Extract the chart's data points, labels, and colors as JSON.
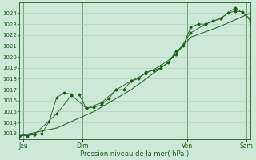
{
  "background_color": "#cce8d8",
  "plot_bg_color": "#cce8d8",
  "grid_color": "#aaccb8",
  "line_color": "#1a5c1a",
  "ylabel": "Pression niveau de la mer( hPa )",
  "ylim": [
    1012.5,
    1025.0
  ],
  "yticks": [
    1013,
    1014,
    1015,
    1016,
    1017,
    1018,
    1019,
    1020,
    1021,
    1022,
    1023,
    1024
  ],
  "xtick_labels": [
    "Jeu",
    "Dim",
    "Ven",
    "Sam"
  ],
  "xtick_positions": [
    0.5,
    8.5,
    22.5,
    30.5
  ],
  "series1": [
    [
      0,
      1012.8
    ],
    [
      1,
      1012.8
    ],
    [
      2,
      1012.9
    ],
    [
      3,
      1013.0
    ],
    [
      4,
      1014.1
    ],
    [
      5,
      1016.3
    ],
    [
      6,
      1016.7
    ],
    [
      7,
      1016.6
    ],
    [
      8,
      1016.6
    ],
    [
      9,
      1015.3
    ],
    [
      10,
      1015.4
    ],
    [
      11,
      1015.6
    ],
    [
      12,
      1016.2
    ],
    [
      13,
      1017.0
    ],
    [
      14,
      1017.0
    ],
    [
      15,
      1017.8
    ],
    [
      16,
      1018.0
    ],
    [
      17,
      1018.6
    ],
    [
      18,
      1018.8
    ],
    [
      19,
      1019.0
    ],
    [
      20,
      1019.5
    ],
    [
      21,
      1020.5
    ],
    [
      22,
      1021.0
    ],
    [
      23,
      1022.7
    ],
    [
      24,
      1023.0
    ],
    [
      25,
      1023.0
    ],
    [
      26,
      1023.3
    ],
    [
      27,
      1023.5
    ],
    [
      28,
      1024.0
    ],
    [
      29,
      1024.2
    ],
    [
      30,
      1024.1
    ],
    [
      31,
      1023.3
    ]
  ],
  "series2": [
    [
      0,
      1012.8
    ],
    [
      2,
      1012.9
    ],
    [
      5,
      1014.8
    ],
    [
      7,
      1016.5
    ],
    [
      9,
      1015.3
    ],
    [
      11,
      1015.8
    ],
    [
      13,
      1017.0
    ],
    [
      15,
      1017.8
    ],
    [
      17,
      1018.5
    ],
    [
      19,
      1019.2
    ],
    [
      21,
      1020.2
    ],
    [
      23,
      1022.2
    ],
    [
      25,
      1023.0
    ],
    [
      27,
      1023.5
    ],
    [
      29,
      1024.5
    ],
    [
      31,
      1023.5
    ]
  ],
  "series3": [
    [
      0,
      1012.8
    ],
    [
      5,
      1013.5
    ],
    [
      10,
      1015.0
    ],
    [
      15,
      1017.0
    ],
    [
      20,
      1019.5
    ],
    [
      23,
      1021.8
    ],
    [
      27,
      1022.8
    ],
    [
      31,
      1024.0
    ]
  ]
}
